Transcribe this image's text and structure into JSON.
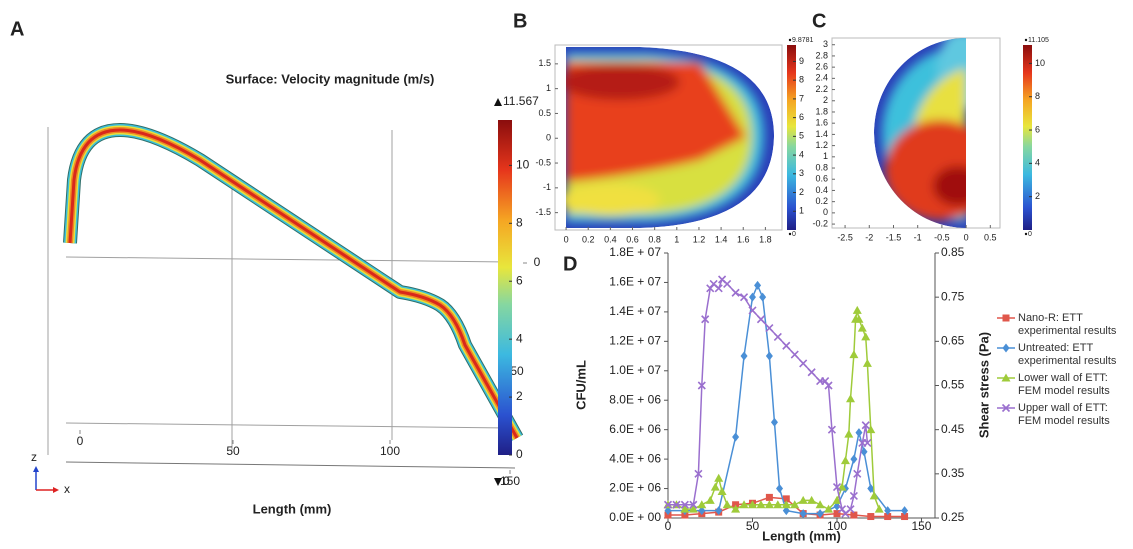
{
  "chart_data": [
    {
      "label": "A",
      "type": "surface",
      "title": "Surface: Velocity magnitude (m/s)",
      "xlabel": "Length (mm)",
      "xticks": [
        0,
        50,
        100,
        150
      ],
      "zticks": [
        0,
        -50
      ],
      "axis_triad": [
        "z",
        "x"
      ],
      "colorbar": {
        "lim": [
          0,
          11.567
        ],
        "ticks": [
          0,
          2,
          4,
          6,
          8,
          10
        ]
      }
    },
    {
      "label": "B",
      "type": "heatmap",
      "xlim": [
        -0.1,
        1.95
      ],
      "ylim": [
        -1.85,
        1.88
      ],
      "xticks": [
        0,
        0.2,
        0.4,
        0.6,
        0.8,
        1,
        1.2,
        1.4,
        1.6,
        1.8
      ],
      "yticks": [
        -1.5,
        -1,
        -0.5,
        0,
        0.5,
        1,
        1.5
      ],
      "colorbar": {
        "lim": [
          0,
          9.8781
        ],
        "ticks": [
          1,
          2,
          3,
          4,
          5,
          6,
          7,
          8,
          9
        ]
      }
    },
    {
      "label": "C",
      "type": "heatmap",
      "xlim": [
        -2.77,
        0.7
      ],
      "ylim": [
        -0.27,
        3.12
      ],
      "xticks": [
        -2.5,
        -2,
        -1.5,
        -1,
        -0.5,
        0,
        0.5
      ],
      "yticks": [
        -0.2,
        0,
        0.2,
        0.4,
        0.6,
        0.8,
        1,
        1.2,
        1.4,
        1.6,
        1.8,
        2,
        2.2,
        2.4,
        2.6,
        2.8,
        3
      ],
      "colorbar": {
        "lim": [
          0,
          11.105
        ],
        "ticks": [
          2,
          4,
          6,
          8,
          10
        ]
      }
    },
    {
      "label": "D",
      "type": "line",
      "xlabel": "Length (mm)",
      "ylabel": "CFU/mL",
      "y2label": "Shear stress (Pa)",
      "xlim": [
        0,
        158
      ],
      "xticks": [
        0,
        50,
        100,
        150
      ],
      "ylim": [
        0,
        18000000
      ],
      "yticks": [
        {
          "value": 0,
          "label": "0.0E + 00"
        },
        {
          "value": 2000000,
          "label": "2.0E + 06"
        },
        {
          "value": 4000000,
          "label": "4.0E + 06"
        },
        {
          "value": 6000000,
          "label": "6.0E + 06"
        },
        {
          "value": 8000000,
          "label": "8.0E + 06"
        },
        {
          "value": 10000000,
          "label": "1.0E + 07"
        },
        {
          "value": 12000000,
          "label": "1.2E + 07"
        },
        {
          "value": 14000000,
          "label": "1.4E + 07"
        },
        {
          "value": 16000000,
          "label": "1.6E + 07"
        },
        {
          "value": 18000000,
          "label": "1.8E + 07"
        }
      ],
      "y2lim": [
        0.25,
        0.85
      ],
      "y2ticks": [
        0.25,
        0.35,
        0.45,
        0.55,
        0.65,
        0.75,
        0.85
      ],
      "series": [
        {
          "name": "Nano-R: ETT experimental results",
          "color": "#e0574b",
          "marker": "square",
          "x": [
            0,
            10,
            20,
            30,
            40,
            50,
            60,
            70,
            80,
            90,
            100,
            110,
            120,
            130,
            140
          ],
          "values": [
            200000,
            200000,
            300000,
            400000,
            900000,
            1000000,
            1400000,
            1300000,
            300000,
            200000,
            300000,
            200000,
            100000,
            100000,
            100000
          ]
        },
        {
          "name": "Untreated: ETT experimental results",
          "color": "#4a8fd6",
          "marker": "diamond",
          "x": [
            0,
            10,
            20,
            30,
            40,
            45,
            50,
            53,
            56,
            60,
            63,
            66,
            70,
            80,
            90,
            100,
            105,
            110,
            113,
            116,
            120,
            130,
            140
          ],
          "values": [
            500000,
            500000,
            500000,
            500000,
            5500000,
            11000000,
            15000000,
            15800000,
            15000000,
            11000000,
            6500000,
            2000000,
            500000,
            300000,
            300000,
            800000,
            2000000,
            4000000,
            5800000,
            4500000,
            2000000,
            500000,
            500000
          ]
        },
        {
          "name": "Lower wall of ETT: FEM model results",
          "color": "#9fcb3a",
          "marker": "triangle",
          "axis": "y2",
          "x": [
            0,
            5,
            10,
            15,
            20,
            25,
            28,
            30,
            32,
            35,
            40,
            45,
            50,
            55,
            60,
            65,
            70,
            75,
            80,
            85,
            90,
            95,
            100,
            103,
            105,
            107,
            108,
            110,
            111,
            112,
            113,
            115,
            117,
            118,
            120,
            122,
            125
          ],
          "values": [
            0.28,
            0.28,
            0.27,
            0.27,
            0.28,
            0.29,
            0.32,
            0.34,
            0.31,
            0.28,
            0.27,
            0.28,
            0.28,
            0.28,
            0.28,
            0.28,
            0.28,
            0.28,
            0.29,
            0.29,
            0.28,
            0.27,
            0.29,
            0.32,
            0.38,
            0.44,
            0.52,
            0.62,
            0.7,
            0.72,
            0.7,
            0.68,
            0.66,
            0.6,
            0.45,
            0.3,
            0.27
          ]
        },
        {
          "name": "Upper wall of  ETT: FEM model results",
          "color": "#9a6fce",
          "marker": "x",
          "axis": "y2",
          "x": [
            0,
            5,
            10,
            15,
            18,
            20,
            22,
            25,
            27,
            30,
            32,
            35,
            40,
            45,
            50,
            55,
            60,
            65,
            70,
            75,
            80,
            85,
            90,
            93,
            95,
            97,
            100,
            103,
            105,
            108,
            110,
            112,
            115,
            117,
            118
          ],
          "values": [
            0.28,
            0.28,
            0.28,
            0.28,
            0.35,
            0.55,
            0.7,
            0.77,
            0.78,
            0.77,
            0.79,
            0.78,
            0.76,
            0.75,
            0.72,
            0.7,
            0.68,
            0.66,
            0.64,
            0.62,
            0.6,
            0.58,
            0.56,
            0.56,
            0.55,
            0.45,
            0.32,
            0.27,
            0.26,
            0.27,
            0.3,
            0.35,
            0.42,
            0.46,
            0.42
          ]
        }
      ]
    }
  ]
}
